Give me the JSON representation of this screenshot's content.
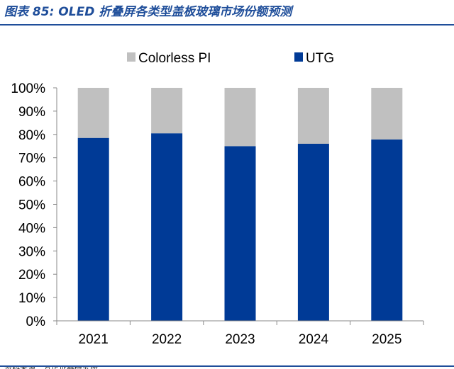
{
  "figure": {
    "title": "图表 85:  OLED 折叠屏各类型盖板玻璃市场份额预测",
    "source": "资料来源：方正证券研究所"
  },
  "chart_data": {
    "type": "bar",
    "stacked": true,
    "categories": [
      "2021",
      "2022",
      "2023",
      "2024",
      "2025"
    ],
    "series": [
      {
        "name": "UTG",
        "color": "#003a96",
        "values": [
          78.5,
          80.5,
          75,
          76,
          77.8
        ]
      },
      {
        "name": "Colorless PI",
        "color": "#c0c0c0",
        "values": [
          21.5,
          19.5,
          25,
          24,
          22.2
        ]
      }
    ],
    "ylim": [
      0,
      100
    ],
    "yticks": [
      0,
      10,
      20,
      30,
      40,
      50,
      60,
      70,
      80,
      90,
      100
    ],
    "ytick_labels": [
      "0%",
      "10%",
      "20%",
      "30%",
      "40%",
      "50%",
      "60%",
      "70%",
      "80%",
      "90%",
      "100%"
    ],
    "legend": {
      "position": "top",
      "entries": [
        {
          "label": "Colorless PI",
          "color": "#c0c0c0"
        },
        {
          "label": "UTG",
          "color": "#003a96"
        }
      ]
    },
    "xlabel": "",
    "ylabel": "",
    "grid": false
  }
}
